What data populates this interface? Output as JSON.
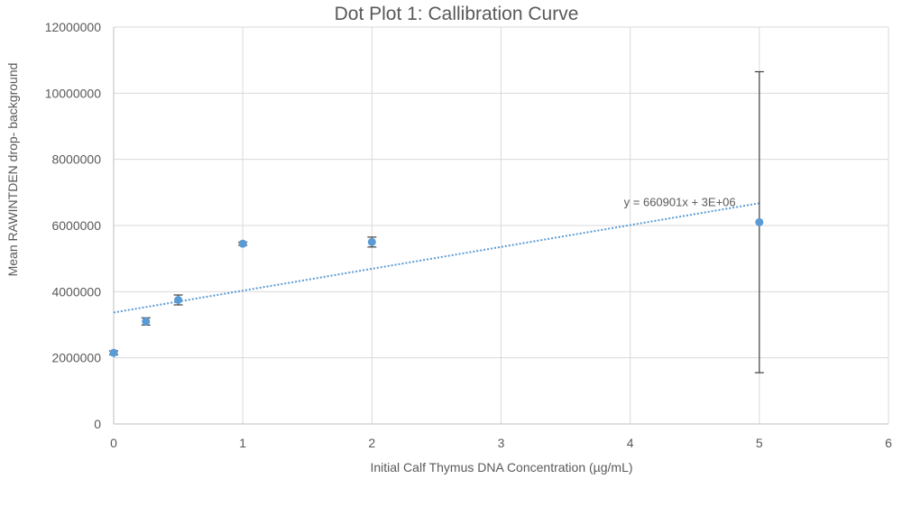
{
  "chart_data": {
    "type": "scatter",
    "title": "Dot Plot 1: Callibration Curve",
    "xlabel": "Initial Calf Thymus DNA Concentration (µg/mL)",
    "ylabel": "Mean RAWINTDEN drop- background",
    "xlim": [
      0,
      6
    ],
    "ylim": [
      0,
      12000000
    ],
    "x_ticks": [
      0,
      1,
      2,
      3,
      4,
      5,
      6
    ],
    "y_ticks": [
      0,
      2000000,
      4000000,
      6000000,
      8000000,
      10000000,
      12000000
    ],
    "grid": true,
    "points": [
      {
        "x": 0,
        "y": 2150000,
        "err": 60000
      },
      {
        "x": 0.25,
        "y": 3100000,
        "err": 110000
      },
      {
        "x": 0.5,
        "y": 3750000,
        "err": 150000
      },
      {
        "x": 1,
        "y": 5450000,
        "err": 50000
      },
      {
        "x": 2,
        "y": 5500000,
        "err": 150000
      },
      {
        "x": 5,
        "y": 6100000,
        "err": 4550000
      }
    ],
    "trendline": {
      "slope": 660901,
      "intercept": 3370000,
      "label": "y = 660901x + 3E+06"
    },
    "colors": {
      "marker": "#5B9BD5",
      "trendline": "#5B9BD5",
      "grid": "#D9D9D9",
      "error_bar": "#404040"
    }
  }
}
